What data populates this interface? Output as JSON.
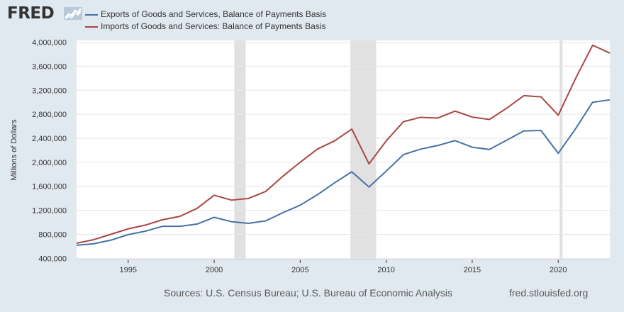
{
  "header": {
    "logo_text": "FRED"
  },
  "legend": [
    {
      "label": "Exports of Goods and Services, Balance of Payments Basis",
      "color": "#4572a7"
    },
    {
      "label": "Imports of Goods and Services: Balance of Payments Basis",
      "color": "#aa4643"
    }
  ],
  "footer": {
    "sources": "Sources: U.S. Census Bureau; U.S. Bureau of Economic Analysis",
    "url": "fred.stlouisfed.org"
  },
  "chart_data": {
    "type": "line",
    "ylabel": "Millions of Dollars",
    "xlabel": "",
    "xlim": [
      1992,
      2023
    ],
    "ylim": [
      400000,
      4000000
    ],
    "x_ticks": [
      1995,
      2000,
      2005,
      2010,
      2015,
      2020
    ],
    "y_ticks": [
      400000,
      800000,
      1200000,
      1600000,
      2000000,
      2400000,
      2800000,
      3200000,
      3600000,
      4000000
    ],
    "y_tick_labels": [
      "400,000",
      "800,000",
      "1,200,000",
      "1,600,000",
      "2,000,000",
      "2,400,000",
      "2,800,000",
      "3,200,000",
      "3,600,000",
      "4,000,000"
    ],
    "x_tick_labels": [
      "1995",
      "2000",
      "2005",
      "2010",
      "2015",
      "2020"
    ],
    "grid": true,
    "recessions": [
      [
        2001.17,
        2001.83
      ],
      [
        2007.92,
        2009.42
      ],
      [
        2020.08,
        2020.25
      ]
    ],
    "x": [
      1992,
      1993,
      1994,
      1995,
      1996,
      1997,
      1998,
      1999,
      2000,
      2001,
      2002,
      2003,
      2004,
      2005,
      2006,
      2007,
      2008,
      2009,
      2010,
      2011,
      2012,
      2013,
      2014,
      2015,
      2016,
      2017,
      2018,
      2019,
      2020,
      2021,
      2022,
      2023
    ],
    "series": [
      {
        "name": "Exports of Goods and Services, Balance of Payments Basis",
        "color": "#4572a7",
        "values": [
          618000,
          643000,
          703000,
          795000,
          852000,
          934000,
          933000,
          970000,
          1083000,
          1011000,
          982000,
          1025000,
          1161000,
          1286000,
          1459000,
          1658000,
          1842000,
          1588000,
          1853000,
          2127000,
          2219000,
          2280000,
          2361000,
          2251000,
          2214000,
          2367000,
          2523000,
          2530000,
          2150000,
          2554000,
          3000000,
          3040000
        ]
      },
      {
        "name": "Imports of Goods and Services: Balance of Payments Basis",
        "color": "#aa4643",
        "values": [
          652000,
          711000,
          801000,
          891000,
          954000,
          1043000,
          1099000,
          1231000,
          1451000,
          1370000,
          1398000,
          1515000,
          1769000,
          2001000,
          2219000,
          2358000,
          2553000,
          1974000,
          2356000,
          2676000,
          2749000,
          2737000,
          2852000,
          2753000,
          2713000,
          2900000,
          3110000,
          3090000,
          2785000,
          3390000,
          3950000,
          3820000
        ]
      }
    ]
  }
}
